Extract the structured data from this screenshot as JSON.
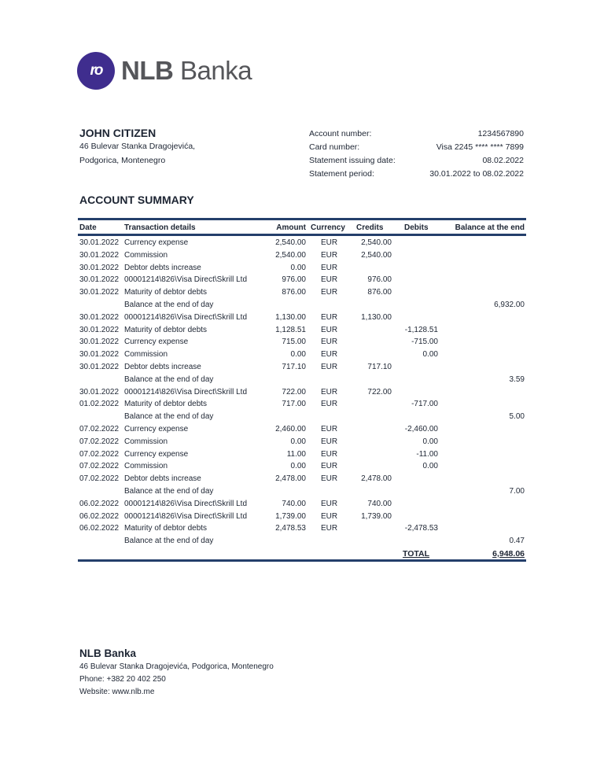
{
  "logo": {
    "mark": "ro",
    "bold": "NLB",
    "rest": " Banka",
    "color": "#3f2d8e"
  },
  "customer": {
    "name": "JOHN CITIZEN",
    "address_line1": "46 Bulevar Stanka Dragojevića,",
    "address_line2": "Podgorica, Montenegro"
  },
  "account_info": [
    {
      "label": "Account number:",
      "value": "1234567890"
    },
    {
      "label": "Card number:",
      "value": "Visa 2245 **** **** 7899"
    },
    {
      "label": "Statement issuing date:",
      "value": "08.02.2022"
    },
    {
      "label": "Statement period:",
      "value": "30.01.2022 to 08.02.2022"
    }
  ],
  "summary_title": "ACCOUNT SUMMARY",
  "table": {
    "headers": [
      "Date",
      "Transaction details",
      "Amount",
      "Currency",
      "Credits",
      "Debits",
      "Balance at the end"
    ],
    "rows": [
      [
        "30.01.2022",
        "Currency expense",
        "2,540.00",
        "EUR",
        "2,540.00",
        "",
        ""
      ],
      [
        "30.01.2022",
        "Commission",
        "2,540.00",
        "EUR",
        "2,540.00",
        "",
        ""
      ],
      [
        "30.01.2022",
        "Debtor debts increase",
        "0.00",
        "EUR",
        "",
        "",
        ""
      ],
      [
        "30.01.2022",
        "00001214\\826\\Visa Direct\\Skrill Ltd",
        "976.00",
        "EUR",
        "976.00",
        "",
        ""
      ],
      [
        "30.01.2022",
        "Maturity of debtor debts",
        "876.00",
        "EUR",
        "876.00",
        "",
        ""
      ],
      [
        "",
        "Balance at the end of day",
        "",
        "",
        "",
        "",
        "6,932.00"
      ],
      [
        "30.01.2022",
        "00001214\\826\\Visa Direct\\Skrill Ltd",
        "1,130.00",
        "EUR",
        "1,130.00",
        "",
        ""
      ],
      [
        "30.01.2022",
        "Maturity of debtor debts",
        "1,128.51",
        "EUR",
        "",
        "-1,128.51",
        ""
      ],
      [
        "30.01.2022",
        "Currency expense",
        "715.00",
        "EUR",
        "",
        "-715.00",
        ""
      ],
      [
        "30.01.2022",
        "Commission",
        "0.00",
        "EUR",
        "",
        "0.00",
        ""
      ],
      [
        "30.01.2022",
        "Debtor debts increase",
        "717.10",
        "EUR",
        "717.10",
        "",
        ""
      ],
      [
        "",
        "Balance at the end of day",
        "",
        "",
        "",
        "",
        "3.59"
      ],
      [
        "30.01.2022",
        "00001214\\826\\Visa Direct\\Skrill Ltd",
        "722.00",
        "EUR",
        "722.00",
        "",
        ""
      ],
      [
        "01.02.2022",
        "Maturity of debtor debts",
        "717.00",
        "EUR",
        "",
        "-717.00",
        ""
      ],
      [
        "",
        "Balance at the end of day",
        "",
        "",
        "",
        "",
        "5.00"
      ],
      [
        "07.02.2022",
        "Currency expense",
        "2,460.00",
        "EUR",
        "",
        "-2,460.00",
        ""
      ],
      [
        "07.02.2022",
        "Commission",
        "0.00",
        "EUR",
        "",
        "0.00",
        ""
      ],
      [
        "07.02.2022",
        "Currency expense",
        "11.00",
        "EUR",
        "",
        "-11.00",
        ""
      ],
      [
        "07.02.2022",
        "Commission",
        "0.00",
        "EUR",
        "",
        "0.00",
        ""
      ],
      [
        "07.02.2022",
        "Debtor debts increase",
        "2,478.00",
        "EUR",
        "2,478.00",
        "",
        ""
      ],
      [
        "",
        "Balance at the end of day",
        "",
        "",
        "",
        "",
        "7.00"
      ],
      [
        "06.02.2022",
        "00001214\\826\\Visa Direct\\Skrill Ltd",
        "740.00",
        "EUR",
        "740.00",
        "",
        ""
      ],
      [
        "06.02.2022",
        "00001214\\826\\Visa Direct\\Skrill Ltd",
        "1,739.00",
        "EUR",
        "1,739.00",
        "",
        ""
      ],
      [
        "06.02.2022",
        "Maturity of debtor debts",
        "2,478.53",
        "EUR",
        "",
        "-2,478.53",
        ""
      ],
      [
        "",
        "Balance at the end of day",
        "",
        "",
        "",
        "",
        "0.47"
      ]
    ],
    "total_label": "TOTAL",
    "total_value": "6,948.06"
  },
  "footer": {
    "title": "NLB Banka",
    "address": "46 Bulevar Stanka Dragojevića, Podgorica, Montenegro",
    "phone": "Phone: +382 20 402 250",
    "website": "Website: www.nlb.me"
  }
}
